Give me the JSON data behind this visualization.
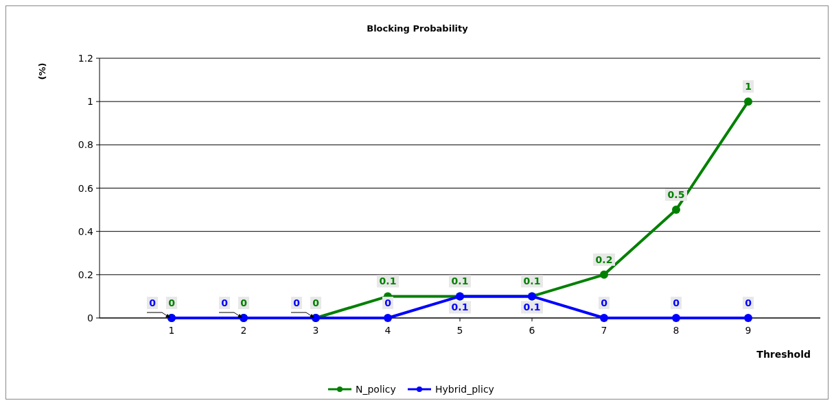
{
  "chart_data": {
    "type": "line",
    "title": "Blocking Probability",
    "xlabel": "Threshold",
    "ylabel": "(%)",
    "categories": [
      "1",
      "2",
      "3",
      "4",
      "5",
      "6",
      "7",
      "8",
      "9"
    ],
    "series": [
      {
        "name": "N_policy",
        "color": "#008000",
        "values": [
          0,
          0,
          0,
          0.1,
          0.1,
          0.1,
          0.2,
          0.5,
          1
        ]
      },
      {
        "name": "Hybrid_plicy",
        "color": "#0000ff",
        "values": [
          0,
          0,
          0,
          0,
          0.1,
          0.1,
          0,
          0,
          0
        ]
      }
    ],
    "ylim": [
      0,
      1.2
    ],
    "yticks": [
      0,
      0.2,
      0.4,
      0.6,
      0.8,
      1,
      1.2
    ],
    "grid": "y",
    "legend": "bottom",
    "marker": "circle",
    "line_style": "solid",
    "data_labels": true
  }
}
